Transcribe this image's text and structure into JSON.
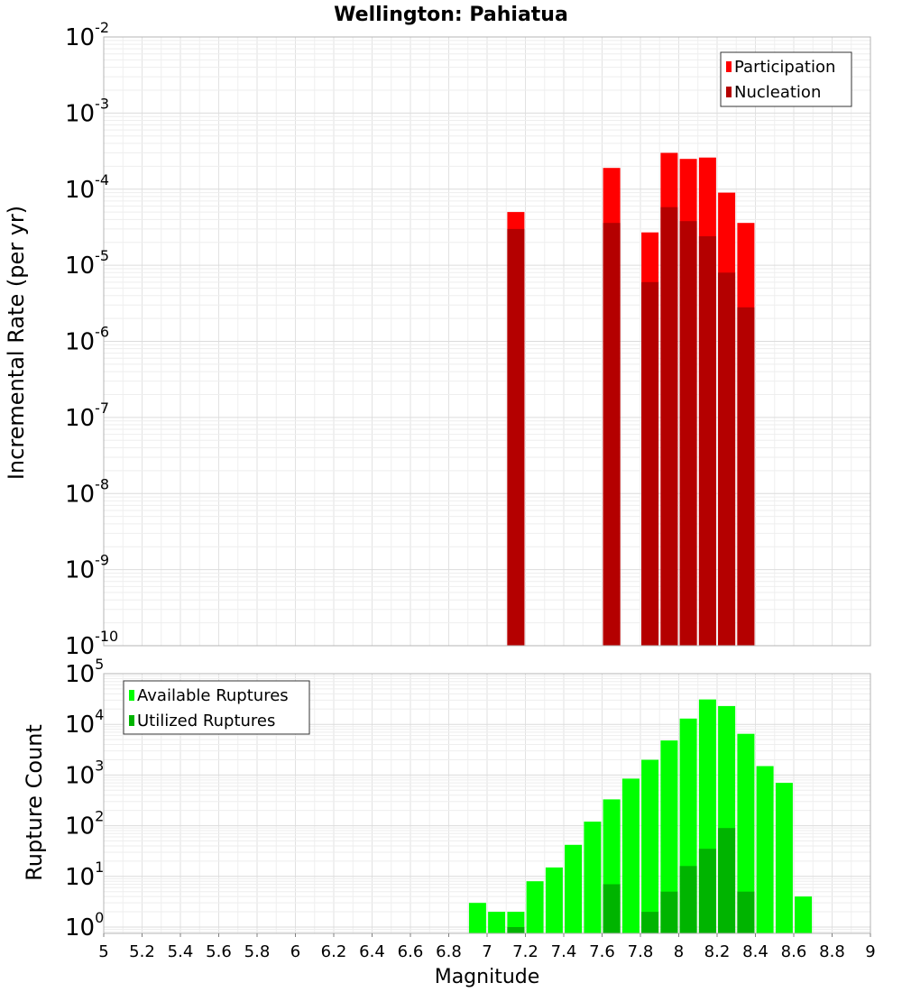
{
  "title": "Wellington: Pahiatua",
  "xlabel": "Magnitude",
  "chart_data": [
    {
      "type": "bar",
      "panel": "top",
      "ylabel": "Incremental Rate (per yr)",
      "yscale": "log",
      "ylim": [
        1e-10,
        0.01
      ],
      "xlim": [
        5,
        9
      ],
      "y_tick_exponents": [
        -10,
        -9,
        -8,
        -7,
        -6,
        -5,
        -4,
        -3,
        -2
      ],
      "legend": {
        "placement": "top-right",
        "entries": [
          "Participation",
          "Nucleation"
        ]
      },
      "x": [
        7.15,
        7.65,
        7.85,
        7.95,
        8.05,
        8.15,
        8.25,
        8.35
      ],
      "series": [
        {
          "name": "Participation",
          "color": "#ff0000",
          "values": [
            5e-05,
            0.00019,
            2.7e-05,
            0.0003,
            0.00025,
            0.00026,
            9e-05,
            3.6e-05
          ]
        },
        {
          "name": "Nucleation",
          "color": "#b40000",
          "values": [
            3e-05,
            3.6e-05,
            6e-06,
            5.8e-05,
            3.8e-05,
            2.4e-05,
            8e-06,
            2.8e-06
          ]
        }
      ],
      "grid": true
    },
    {
      "type": "bar",
      "panel": "bottom",
      "ylabel": "Rupture Count",
      "yscale": "log",
      "ylim": [
        0.75,
        100000
      ],
      "xlim": [
        5,
        9
      ],
      "y_tick_exponents": [
        0,
        1,
        2,
        3,
        4,
        5
      ],
      "x_ticks": [
        "5",
        "5.2",
        "5.4",
        "5.6",
        "5.8",
        "6",
        "6.2",
        "6.4",
        "6.6",
        "6.8",
        "7",
        "7.2",
        "7.4",
        "7.6",
        "7.8",
        "8",
        "8.2",
        "8.4",
        "8.6",
        "8.8",
        "9"
      ],
      "legend": {
        "placement": "top-left",
        "entries": [
          "Available Ruptures",
          "Utilized Ruptures"
        ]
      },
      "x": [
        6.95,
        7.05,
        7.15,
        7.25,
        7.35,
        7.45,
        7.55,
        7.65,
        7.75,
        7.85,
        7.95,
        8.05,
        8.15,
        8.25,
        8.35,
        8.45,
        8.55,
        8.65
      ],
      "series": [
        {
          "name": "Available Ruptures",
          "color": "#00ff00",
          "values": [
            3,
            2,
            2,
            8,
            15,
            42,
            120,
            330,
            850,
            2000,
            4800,
            13000,
            31000,
            23000,
            6500,
            1500,
            700,
            4
          ]
        },
        {
          "name": "Utilized Ruptures",
          "color": "#00b400",
          "values": [
            0,
            0,
            1,
            0,
            0,
            0,
            0,
            7,
            0,
            2,
            5,
            16,
            35,
            90,
            5,
            0,
            0,
            0
          ]
        }
      ],
      "grid": true
    }
  ]
}
